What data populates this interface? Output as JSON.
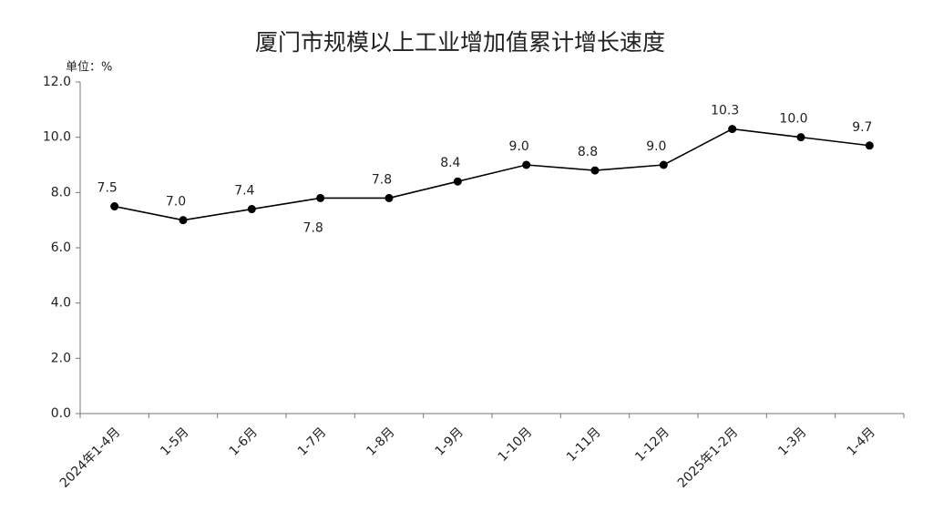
{
  "chart_data": {
    "type": "line",
    "title": "厦门市规模以上工业增加值累计增长速度",
    "y_unit": "单位：%",
    "categories": [
      "2024年1-4月",
      "1-5月",
      "1-6月",
      "1-7月",
      "1-8月",
      "1-9月",
      "1-10月",
      "1-11月",
      "1-12月",
      "2025年1-2月",
      "1-3月",
      "1-4月"
    ],
    "series": [
      {
        "name": "增长速度",
        "color": "#000000",
        "values": [
          7.5,
          7.0,
          7.4,
          7.8,
          7.8,
          8.4,
          9.0,
          8.8,
          9.0,
          10.3,
          10.0,
          9.7
        ],
        "value_labels": [
          "7.5",
          "7.0",
          "7.4",
          "7.8",
          "7.8",
          "8.4",
          "9.0",
          "8.8",
          "9.0",
          "10.3",
          "10.0",
          "9.7"
        ]
      }
    ],
    "ylim": [
      0,
      12
    ],
    "yticks": [
      {
        "value": 0,
        "label": "0.0"
      },
      {
        "value": 2,
        "label": "2.0"
      },
      {
        "value": 4,
        "label": "4.0"
      },
      {
        "value": 6,
        "label": "6.0"
      },
      {
        "value": 8,
        "label": "8.0"
      },
      {
        "value": 10,
        "label": "10.0"
      },
      {
        "value": 12,
        "label": "12.0"
      }
    ],
    "grid": false
  }
}
